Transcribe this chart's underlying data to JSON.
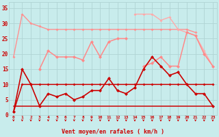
{
  "xlabel": "Vent moyen/en rafales ( km/h )",
  "background_color": "#c8ecec",
  "grid_color": "#b0d4d4",
  "xlim": [
    -0.5,
    23.5
  ],
  "ylim": [
    0,
    37
  ],
  "yticks": [
    0,
    5,
    10,
    15,
    20,
    25,
    30,
    35
  ],
  "x_labels": [
    "0",
    "1",
    "2",
    "3",
    "4",
    "5",
    "6",
    "7",
    "8",
    "9",
    "10",
    "11",
    "12",
    "13",
    "14",
    "15",
    "16",
    "17",
    "18",
    "19",
    "20",
    "21",
    "22",
    "23"
  ],
  "series": [
    {
      "name": "rafales_max_spike",
      "color": "#ff9090",
      "linewidth": 1.0,
      "marker": "D",
      "markersize": 2.0,
      "data": [
        19,
        33,
        30,
        29,
        28,
        28,
        28,
        28,
        28,
        28,
        28,
        28,
        28,
        28,
        28,
        28,
        28,
        28,
        28,
        28,
        28,
        27,
        null,
        null
      ]
    },
    {
      "name": "rafales_upper",
      "color": "#ffaaaa",
      "linewidth": 1.0,
      "marker": "D",
      "markersize": 2.0,
      "data": [
        null,
        null,
        null,
        null,
        null,
        null,
        null,
        null,
        null,
        null,
        null,
        null,
        null,
        null,
        33,
        33,
        33,
        31,
        32,
        28,
        27,
        26,
        21,
        16
      ]
    },
    {
      "name": "moyen_pink_upper",
      "color": "#ff8888",
      "linewidth": 1.1,
      "marker": "D",
      "markersize": 2.5,
      "data": [
        null,
        null,
        null,
        15,
        21,
        19,
        19,
        19,
        18,
        24,
        19,
        24,
        25,
        25,
        null,
        null,
        null,
        null,
        null,
        null,
        null,
        null,
        null,
        null
      ]
    },
    {
      "name": "moyen_pink_lower_right",
      "color": "#ff8888",
      "linewidth": 1.1,
      "marker": "D",
      "markersize": 2.5,
      "data": [
        null,
        null,
        null,
        null,
        null,
        null,
        null,
        null,
        null,
        null,
        null,
        null,
        null,
        null,
        null,
        16,
        17,
        19,
        16,
        16,
        27,
        26,
        20,
        16
      ]
    },
    {
      "name": "dark_variable",
      "color": "#cc0000",
      "linewidth": 1.2,
      "marker": "D",
      "markersize": 2.5,
      "data": [
        1,
        15,
        10,
        3,
        7,
        6,
        7,
        5,
        6,
        8,
        8,
        12,
        8,
        7,
        9,
        15,
        19,
        16,
        13,
        14,
        10,
        7,
        7,
        3
      ]
    },
    {
      "name": "dark_steady_upper",
      "color": "#cc0000",
      "linewidth": 1.1,
      "marker": "D",
      "markersize": 2.0,
      "data": [
        1,
        10,
        10,
        10,
        10,
        10,
        10,
        10,
        10,
        10,
        10,
        10,
        10,
        10,
        10,
        10,
        10,
        10,
        10,
        10,
        10,
        10,
        10,
        10
      ]
    },
    {
      "name": "dark_flat",
      "color": "#cc0000",
      "linewidth": 1.1,
      "marker": null,
      "markersize": 0,
      "data": [
        3,
        3,
        3,
        3,
        3,
        3,
        3,
        3,
        3,
        3,
        3,
        3,
        3,
        3,
        3,
        3,
        3,
        3,
        3,
        3,
        3,
        3,
        3,
        3
      ]
    }
  ],
  "tick_color": "#cc0000",
  "label_color": "#cc0000",
  "arrow_color": "#cc0000"
}
